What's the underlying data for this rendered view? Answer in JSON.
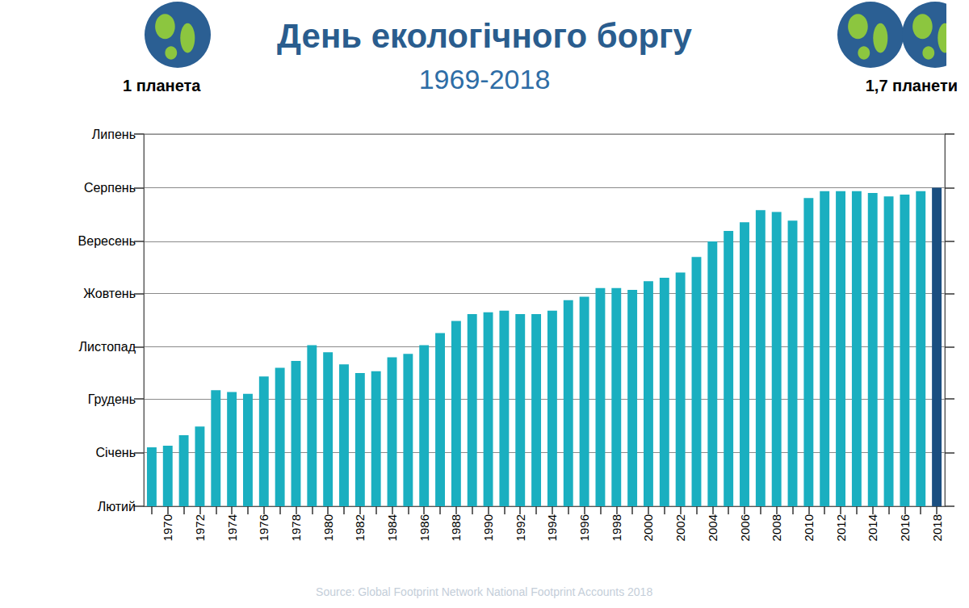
{
  "chart_data": {
    "type": "bar",
    "title": "День екологічного боргу",
    "subtitle": "1969-2018",
    "annotations": [
      "1 планета",
      "1,7 планети"
    ],
    "source": "Source: Global Footprint Network National Footprint Accounts 2018",
    "categories": [
      null,
      "1970",
      null,
      "1972",
      null,
      "1974",
      null,
      "1976",
      null,
      "1978",
      null,
      "1980",
      null,
      "1982",
      null,
      "1984",
      null,
      "1986",
      null,
      "1988",
      null,
      "1990",
      null,
      "1992",
      null,
      "1994",
      null,
      "1996",
      null,
      "1998",
      null,
      "2000",
      null,
      "2002",
      null,
      "2004",
      null,
      "2006",
      null,
      "2008",
      null,
      "2010",
      null,
      "2012",
      null,
      "2014",
      null,
      "2016",
      null,
      "2018"
    ],
    "values": [
      363,
      362,
      356,
      351,
      330,
      331,
      332,
      322,
      317,
      313,
      304,
      308,
      315,
      320,
      319,
      311,
      309,
      304,
      297,
      290,
      286,
      285,
      284,
      286,
      286,
      284,
      278,
      276,
      271,
      271,
      272,
      267,
      265,
      262,
      253,
      244,
      238,
      233,
      226,
      227,
      232,
      219,
      215,
      215,
      215,
      216,
      218,
      217,
      215,
      213
    ],
    "colors": [
      "#1aafc0",
      "#1aafc0",
      "#1aafc0",
      "#1aafc0",
      "#1aafc0",
      "#1aafc0",
      "#1aafc0",
      "#1aafc0",
      "#1aafc0",
      "#1aafc0",
      "#1aafc0",
      "#1aafc0",
      "#1aafc0",
      "#1aafc0",
      "#1aafc0",
      "#1aafc0",
      "#1aafc0",
      "#1aafc0",
      "#1aafc0",
      "#1aafc0",
      "#1aafc0",
      "#1aafc0",
      "#1aafc0",
      "#1aafc0",
      "#1aafc0",
      "#1aafc0",
      "#1aafc0",
      "#1aafc0",
      "#1aafc0",
      "#1aafc0",
      "#1aafc0",
      "#1aafc0",
      "#1aafc0",
      "#1aafc0",
      "#1aafc0",
      "#1aafc0",
      "#1aafc0",
      "#1aafc0",
      "#1aafc0",
      "#1aafc0",
      "#1aafc0",
      "#1aafc0",
      "#1aafc0",
      "#1aafc0",
      "#1aafc0",
      "#1aafc0",
      "#1aafc0",
      "#1aafc0",
      "#1aafc0",
      "#1b4e80"
    ],
    "ylim": [
      397,
      182
    ],
    "yticks": [
      {
        "value": 397,
        "label": "Лютий"
      },
      {
        "value": 366,
        "label": "Січень"
      },
      {
        "value": 335,
        "label": "Грудень"
      },
      {
        "value": 305,
        "label": "Листопад"
      },
      {
        "value": 274,
        "label": "Жовтень"
      },
      {
        "value": 244,
        "label": "Вересень"
      },
      {
        "value": 213,
        "label": "Серпень"
      },
      {
        "value": 182,
        "label": "Липень"
      }
    ],
    "grid": true
  }
}
